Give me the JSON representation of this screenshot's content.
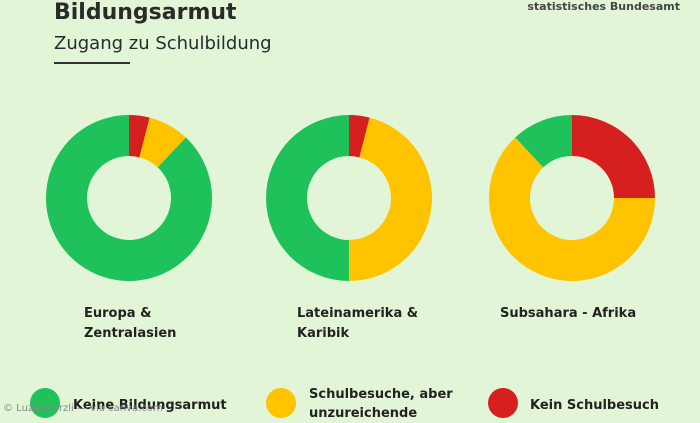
{
  "header": {
    "title": "Bildungsarmut",
    "subtitle": "Zugang zu Schulbildung",
    "source": "statistisches Bundesamt"
  },
  "credit": "© Luzia Harzli — via canva.com",
  "legend": [
    {
      "label": "Keine Bildungsarmut",
      "color": "#1fc25a"
    },
    {
      "label": "Schulbesuche, aber unzureichende",
      "color": "#ffc300"
    },
    {
      "label": "Kein Schulbesuch",
      "color": "#d61f1f"
    }
  ],
  "chart_data": [
    {
      "type": "pie",
      "region": "Europa & Zentralasien",
      "label_lines": [
        "Europa &",
        "Zentralasien"
      ],
      "slices": [
        {
          "series": "Kein Schulbesuch",
          "value": 4
        },
        {
          "series": "Schulbesuche, aber unzureichende",
          "value": 8
        },
        {
          "series": "Keine Bildungsarmut",
          "value": 88
        }
      ]
    },
    {
      "type": "pie",
      "region": "Lateinamerika & Karibik",
      "label_lines": [
        "Lateinamerika &",
        "Karibik"
      ],
      "slices": [
        {
          "series": "Kein Schulbesuch",
          "value": 4
        },
        {
          "series": "Schulbesuche, aber unzureichende",
          "value": 46
        },
        {
          "series": "Keine Bildungsarmut",
          "value": 50
        }
      ]
    },
    {
      "type": "pie",
      "region": "Subsahara - Afrika",
      "label_lines": [
        "Subsahara - Afrika"
      ],
      "slices": [
        {
          "series": "Kein Schulbesuch",
          "value": 25
        },
        {
          "series": "Schulbesuche, aber unzureichende",
          "value": 63
        },
        {
          "series": "Keine Bildungsarmut",
          "value": 12
        }
      ]
    }
  ]
}
